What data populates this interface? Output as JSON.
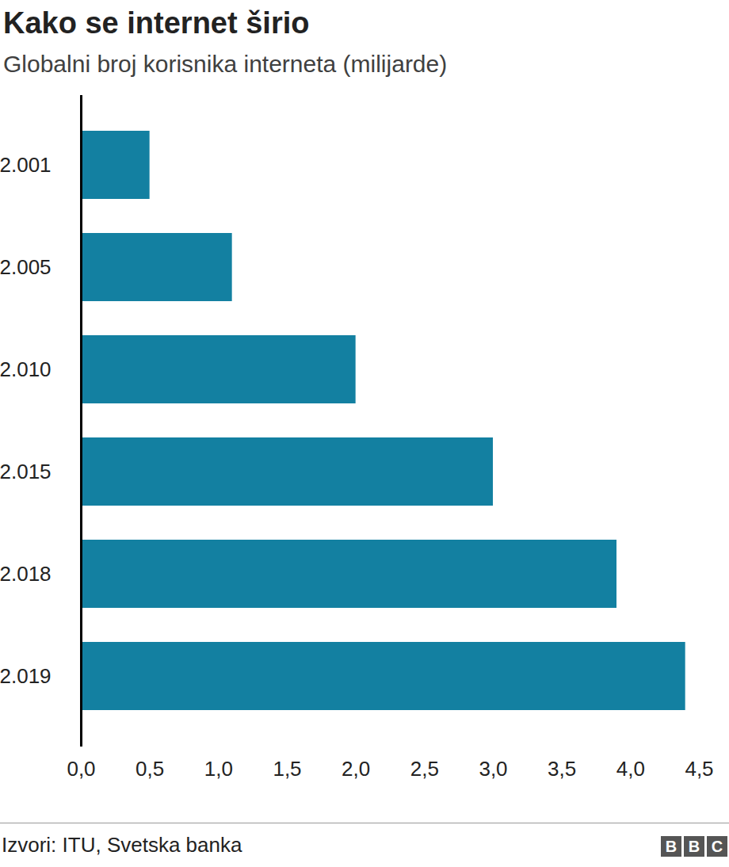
{
  "chart_data": {
    "type": "bar",
    "orientation": "horizontal",
    "title": "Kako se internet širio",
    "subtitle": "Globalni broj korisnika interneta (milijarde)",
    "categories": [
      "2.001",
      "2.005",
      "2.010",
      "2.015",
      "2.018",
      "2.019"
    ],
    "values": [
      0.5,
      1.1,
      2.0,
      3.0,
      3.9,
      4.4
    ],
    "color": "#1380a1",
    "xlim": [
      0,
      4.5
    ],
    "xticks": [
      {
        "value": 0,
        "label": "0,0"
      },
      {
        "value": 0.5,
        "label": "0,5"
      },
      {
        "value": 1,
        "label": "1,0"
      },
      {
        "value": 1.5,
        "label": "1,5"
      },
      {
        "value": 2,
        "label": "2,0"
      },
      {
        "value": 2.5,
        "label": "2,5"
      },
      {
        "value": 3,
        "label": "3,0"
      },
      {
        "value": 3.5,
        "label": "3,5"
      },
      {
        "value": 4,
        "label": "4,0"
      },
      {
        "value": 4.5,
        "label": "4,5"
      }
    ],
    "grid": false,
    "caption": "Izvori: ITU, Svetska banka",
    "logo": "BBC"
  }
}
